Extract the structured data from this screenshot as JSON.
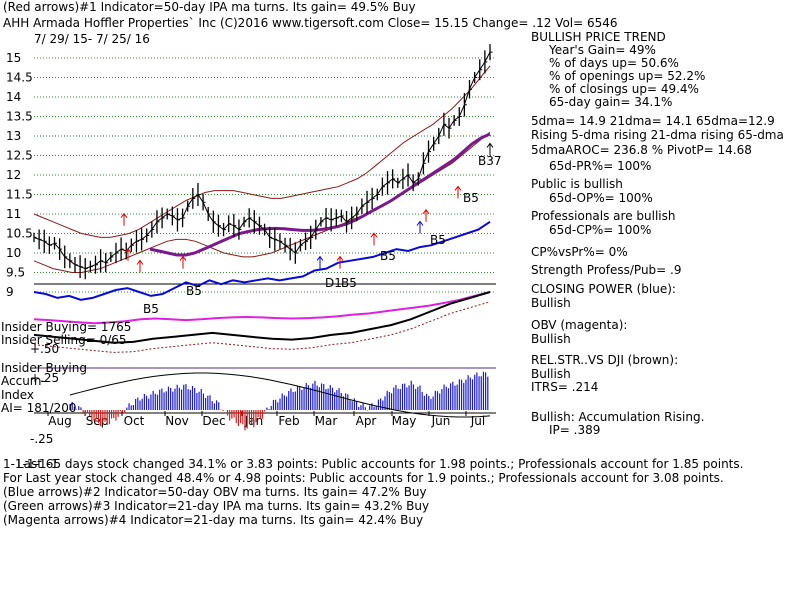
{
  "header": {
    "indicator_line": "(Red arrows)#1 Indicator=50-day IPA ma turns. Its gain= 49.5% Buy",
    "title_line": "AHH   Armada Hoffler Properties` Inc  (C)2016 www.tigersoft.com     Close=  15.15  Change= .12 Vol= 6546",
    "date_range": "7/ 29/ 15-  7/ 25/ 16"
  },
  "right_panel": {
    "trend_title": "BULLISH PRICE TREND",
    "years_gain": "Year's Gain= 49%",
    "pct_days_up": "% of days up= 50.6%",
    "pct_openings_up": "% of openings up= 52.2%",
    "pct_closings_up": "% of closings up= 49.4%",
    "gain_65": "65-day gain= 34.1%",
    "dma_line": "5dma= 14.9 21dma= 14.1 65dma=12.9",
    "rising_line": "Rising 5-dma rising 21-dma rising 65-dma",
    "aroc_line": "5dmaAROC= 236.8 %  PivotP= 14.68",
    "pr_line": "65d-PR%= 100%",
    "public_title": "Public is bullish",
    "op_line": "65d-OP%= 100%",
    "prof_title": "Professionals are bullish",
    "cp_line": "65d-CP%= 100%",
    "cpvspr": "CP%vsPr%=  0%",
    "strength": "Strength Profess/Pub= .9",
    "closing_power": "CLOSING POWER (blue):",
    "cp_bullish": "Bullish",
    "obv": "OBV (magenta):",
    "obv_bullish": "Bullish",
    "relstr": "REL.STR..VS DJI (brown):",
    "relstr_bullish": "Bullish",
    "itrs": "ITRS= .214",
    "accum": "Bullish: Accumulation Rising.",
    "ip": "IP=  .389"
  },
  "left_labels": {
    "insider_buying": "Insider Buying= 1765",
    "insider_selling": "Insider Selling= 0/65",
    "plus50": "+.50",
    "ib_label": "Insider Buying",
    "accum_label": "Accum-",
    "plus25": "+.25",
    "index_label": "Index",
    "ai_label": "AI= 181/200",
    "minus25": "-.25"
  },
  "footer": {
    "line1": "Last 65 days stock changed  34.1% or  3.83 points:  Public accounts for  1.98 points.;  Professionals account for  1.85 points.",
    "line1_overlap": "1-1-1-1-1",
    "line2": "For Last year stock changed  48.4% or  4.98 points:  Public accounts for  1.9 points.;  Professionals account for  3.08 points.",
    "line3": "(Blue arrows)#2 Indicator=50-day OBV ma turns. Its gain= 47.2% Buy",
    "line4": "(Green arrows)#3 Indicator=21-day IPA ma turns. Its gain= 43.2% Buy",
    "line5": "(Magenta arrows)#4 Indicator=21-day ma turns. Its gain= 42.4% Buy"
  },
  "chart_data": {
    "type": "line",
    "y_ticks": [
      15,
      14.5,
      14,
      13.5,
      13,
      12.5,
      12,
      11.5,
      11,
      10.5,
      10,
      9.5,
      9
    ],
    "y_tick_labels": [
      "15",
      "14.5",
      "14",
      "13.5",
      "13",
      "12.5",
      "12",
      "11.5",
      "11",
      "10.5",
      "10",
      "9.5",
      "9"
    ],
    "ylim": [
      8.9,
      15.3
    ],
    "months": [
      "Aug",
      "Sep",
      "Oct",
      "Nov",
      "Dec",
      "Jan",
      "Feb",
      "Mar",
      "Apr",
      "May",
      "Jun",
      "Jul"
    ],
    "annotations": [
      "B5",
      "B5",
      "B5",
      "B5",
      "B5",
      "D1",
      "B5",
      "B37"
    ],
    "price": [
      10.4,
      10.35,
      10.3,
      10.2,
      10.25,
      10.1,
      9.9,
      9.8,
      9.7,
      9.65,
      9.6,
      9.65,
      9.7,
      9.8,
      9.75,
      9.9,
      10.0,
      10.1,
      10.05,
      10.2,
      10.3,
      10.35,
      10.45,
      10.6,
      10.8,
      10.9,
      11.0,
      10.95,
      10.85,
      10.9,
      11.2,
      11.4,
      11.5,
      11.3,
      11.0,
      10.8,
      10.7,
      10.6,
      10.75,
      10.7,
      10.6,
      10.8,
      10.9,
      10.8,
      10.7,
      10.6,
      10.4,
      10.35,
      10.3,
      10.2,
      10.1,
      10.0,
      10.2,
      10.3,
      10.4,
      10.6,
      10.8,
      10.9,
      10.85,
      10.9,
      10.95,
      10.8,
      10.9,
      11.0,
      11.2,
      11.3,
      11.4,
      11.5,
      11.7,
      11.8,
      11.9,
      11.8,
      11.9,
      12.0,
      11.8,
      11.9,
      12.3,
      12.6,
      12.8,
      13.0,
      13.3,
      13.2,
      13.4,
      13.5,
      13.8,
      14.2,
      14.5,
      14.7,
      14.9,
      15.15
    ],
    "upper_band": [
      11.0,
      10.9,
      10.8,
      10.7,
      10.6,
      10.5,
      10.45,
      10.4,
      10.4,
      10.45,
      10.5,
      10.6,
      10.75,
      10.9,
      11.05,
      11.2,
      11.35,
      11.45,
      11.55,
      11.6,
      11.6,
      11.6,
      11.55,
      11.5,
      11.45,
      11.4,
      11.4,
      11.45,
      11.5,
      11.55,
      11.6,
      11.65,
      11.7,
      11.8,
      11.9,
      12.05,
      12.25,
      12.45,
      12.65,
      12.85,
      13.0,
      13.15,
      13.3,
      13.5,
      13.7,
      13.95,
      14.2,
      14.5,
      14.8
    ],
    "lower_band": [
      9.8,
      9.7,
      9.6,
      9.55,
      9.5,
      9.5,
      9.55,
      9.6,
      9.7,
      9.8,
      9.9,
      10.0,
      10.1,
      10.2,
      10.3,
      10.35,
      10.35,
      10.3,
      10.2,
      10.1,
      10.0,
      9.95,
      9.9,
      9.9,
      9.95,
      10.0,
      10.1,
      10.2,
      10.3,
      10.4,
      10.5,
      10.6,
      10.7,
      10.8,
      10.9,
      11.0,
      11.1,
      11.25,
      11.4,
      11.55,
      11.7,
      11.85,
      12.0,
      12.15,
      12.3,
      12.5,
      12.7,
      12.9,
      13.1
    ],
    "ma65": [
      10.1,
      10.05,
      10.0,
      9.95,
      9.95,
      10.0,
      10.1,
      10.2,
      10.3,
      10.4,
      10.5,
      10.55,
      10.6,
      10.62,
      10.63,
      10.62,
      10.6,
      10.58,
      10.58,
      10.6,
      10.63,
      10.68,
      10.75,
      10.85,
      10.97,
      11.1,
      11.22,
      11.35,
      11.5,
      11.65,
      11.8,
      11.95,
      12.1,
      12.25,
      12.4,
      12.6,
      12.8,
      12.95,
      13.05
    ],
    "closing_power": [
      9.0,
      8.95,
      8.85,
      8.9,
      8.8,
      8.85,
      8.95,
      9.05,
      9.1,
      9.0,
      8.9,
      8.95,
      9.1,
      9.25,
      9.15,
      9.3,
      9.2,
      9.3,
      9.25,
      9.3,
      9.35,
      9.3,
      9.35,
      9.4,
      9.55,
      9.6,
      9.75,
      9.8,
      9.85,
      9.9,
      10.0,
      10.1,
      10.05,
      10.15,
      10.2,
      10.3,
      10.4,
      10.5,
      10.6,
      10.8
    ],
    "obv": [
      8.3,
      8.28,
      8.25,
      8.22,
      8.2,
      8.22,
      8.25,
      8.3,
      8.32,
      8.3,
      8.28,
      8.3,
      8.33,
      8.35,
      8.36,
      8.35,
      8.33,
      8.32,
      8.33,
      8.35,
      8.38,
      8.42,
      8.45,
      8.5,
      8.55,
      8.6,
      8.65,
      8.72,
      8.8,
      8.9,
      9.0
    ],
    "relative_strength": [
      7.9,
      7.85,
      7.8,
      7.75,
      7.7,
      7.72,
      7.8,
      7.85,
      7.9,
      7.95,
      7.9,
      7.85,
      7.8,
      7.78,
      7.82,
      7.9,
      7.95,
      8.05,
      8.15,
      8.3,
      8.5,
      8.7,
      8.85,
      9.0
    ],
    "accum_index": [
      0.05,
      0.02,
      -0.05,
      -0.1,
      -0.12,
      -0.08,
      -0.02,
      0.05,
      0.1,
      0.12,
      0.15,
      0.17,
      0.18,
      0.2,
      0.18,
      0.15,
      0.1,
      0.05,
      -0.05,
      -0.1,
      -0.15,
      -0.12,
      -0.05,
      0.05,
      0.1,
      0.15,
      0.18,
      0.2,
      0.22,
      0.2,
      0.18,
      0.15,
      0.1,
      0.05,
      0.02,
      0.05,
      0.12,
      0.18,
      0.2,
      0.22,
      0.18,
      0.1,
      0.15,
      0.2,
      0.22,
      0.25,
      0.28,
      0.3
    ]
  }
}
